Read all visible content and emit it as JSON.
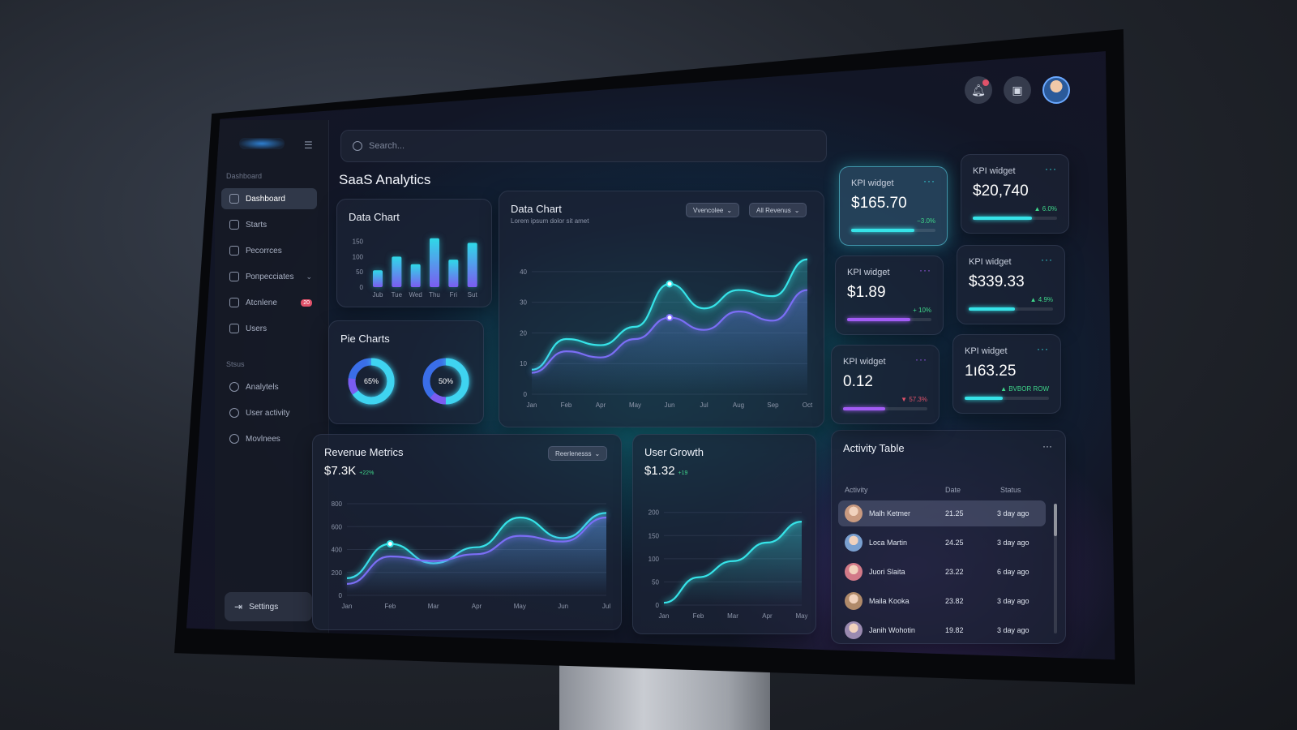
{
  "sidebar": {
    "section_main": "Dashboard",
    "items": [
      {
        "label": "Dashboard",
        "icon": "grid-icon",
        "active": true
      },
      {
        "label": "Starts",
        "icon": "gear-icon"
      },
      {
        "label": "Ресоrrces",
        "icon": "bar-chart-icon"
      },
      {
        "label": "Ропрессіаtes",
        "icon": "layers-icon",
        "chevron": "⌄"
      },
      {
        "label": "Atcnlene",
        "icon": "clipboard-icon",
        "badge": "20"
      },
      {
        "label": "Users",
        "icon": "user-icon"
      }
    ],
    "section_status": "Stsus",
    "status_items": [
      {
        "label": "Analytels",
        "icon": "clock-icon"
      },
      {
        "label": "User activity",
        "icon": "alert-icon"
      },
      {
        "label": "Movlnees",
        "icon": "list-icon"
      }
    ],
    "settings_label": "Settings"
  },
  "search": {
    "placeholder": "Search..."
  },
  "page_title": "SaaS Analytics",
  "bar_card": {
    "title": "Data Chart",
    "chart_data": {
      "type": "bar",
      "categories": [
        "Jub",
        "Tue",
        "Wed",
        "Thu",
        "Fri",
        "Sut"
      ],
      "values": [
        55,
        100,
        75,
        160,
        90,
        145
      ],
      "yticks": [
        0,
        50,
        100,
        150
      ],
      "ylim": [
        0,
        170
      ],
      "colors": [
        "#7b5cf0",
        "#2fd9e8"
      ]
    }
  },
  "pie_card": {
    "title": "Pie Charts",
    "chart_data": {
      "type": "pie",
      "donuts": [
        {
          "label": "65%",
          "value": 65,
          "colors": [
            "#3fd4f0",
            "#7b5cf0",
            "#3a6ee8"
          ]
        },
        {
          "label": "50%",
          "value": 50,
          "colors": [
            "#3fd4f0",
            "#7b5cf0",
            "#3a6ee8"
          ]
        }
      ]
    }
  },
  "main_chart": {
    "title": "Data Chart",
    "subtitle": "Lorem ipsum dolor sit amet",
    "dropdown1": "Vvencolee",
    "dropdown2": "All Revenus",
    "chart_data": {
      "type": "line",
      "x": [
        "Jan",
        "Feb",
        "Apr",
        "May",
        "Jun",
        "Jul",
        "Aug",
        "Sep",
        "Oct"
      ],
      "yticks": [
        0,
        10,
        20,
        30,
        40
      ],
      "ylim": [
        0,
        45
      ],
      "series": [
        {
          "values": [
            8,
            18,
            16,
            22,
            36,
            28,
            34,
            32,
            44
          ],
          "color": "#36e3e8"
        },
        {
          "values": [
            7,
            14,
            12,
            18,
            25,
            21,
            27,
            24,
            34
          ],
          "color": "#7b6ef5"
        }
      ]
    }
  },
  "kpis": [
    {
      "label": "KPI widget",
      "value": "$165.70",
      "delta": "−3.0%",
      "progress": 0.75,
      "color": "#36e3e8",
      "highlight": true
    },
    {
      "label": "KPI widget",
      "value": "$20,740",
      "delta": "▲ 6.0%",
      "progress": 0.7,
      "color": "#36e3e8"
    },
    {
      "label": "KPI widget",
      "value": "$1.89",
      "delta": "+ 10%",
      "progress": 0.75,
      "color": "#a35cf5"
    },
    {
      "label": "KPI widget",
      "value": "$339.33",
      "delta": "▲ 4.9%",
      "progress": 0.55,
      "color": "#36e3e8"
    },
    {
      "label": "KPI widget",
      "value": "0.12",
      "delta": "▼ 57.3%",
      "progress": 0.5,
      "color": "#a35cf5"
    },
    {
      "label": "KPI widget",
      "value": "1ı63.25",
      "delta": "▲ BVBOR ROW",
      "progress": 0.45,
      "color": "#36e3e8"
    }
  ],
  "revenue": {
    "title": "Revenue Metrics",
    "value": "$7.3K",
    "delta": "+22%",
    "dropdown": "Reerlenesss",
    "chart_data": {
      "type": "line",
      "x": [
        "Jan",
        "Feb",
        "Mar",
        "Apr",
        "May",
        "Jun",
        "Jul"
      ],
      "yticks": [
        0,
        200,
        400,
        600,
        800
      ],
      "ylim": [
        0,
        850
      ],
      "series": [
        {
          "values": [
            150,
            450,
            280,
            420,
            680,
            500,
            720
          ],
          "color": "#36e3e8"
        },
        {
          "values": [
            100,
            340,
            300,
            360,
            520,
            470,
            680
          ],
          "color": "#7b6ef5"
        }
      ]
    }
  },
  "user_growth": {
    "title": "User Growth",
    "value": "$1.32",
    "delta": "+19",
    "chart_data": {
      "type": "area",
      "x": [
        "Jan",
        "Feb",
        "Mar",
        "Apr",
        "May"
      ],
      "yticks": [
        0,
        50,
        100,
        150,
        200
      ],
      "ylim": [
        0,
        210
      ],
      "series": [
        {
          "values": [
            5,
            60,
            95,
            135,
            180
          ],
          "color": "#36e3e8"
        }
      ]
    }
  },
  "activity": {
    "title": "Activity Table",
    "menu": "···",
    "columns": [
      "Activity",
      "Date",
      "Status"
    ],
    "rows": [
      {
        "name": "Malh Ketmer",
        "date": "21.25",
        "status": "3 day ago",
        "selected": true,
        "avatar": "#c99a80"
      },
      {
        "name": "Loca Martin",
        "date": "24.25",
        "status": "3 day ago",
        "avatar": "#7aa0d0"
      },
      {
        "name": "Juori Slaita",
        "date": "23.22",
        "status": "6 day ago",
        "avatar": "#d27a88"
      },
      {
        "name": "Maila Kooka",
        "date": "23.82",
        "status": "3 day ago",
        "avatar": "#b08a6a"
      },
      {
        "name": "Janih Wohotin",
        "date": "19.82",
        "status": "3 day ago",
        "avatar": "#9a8ab0"
      }
    ]
  }
}
